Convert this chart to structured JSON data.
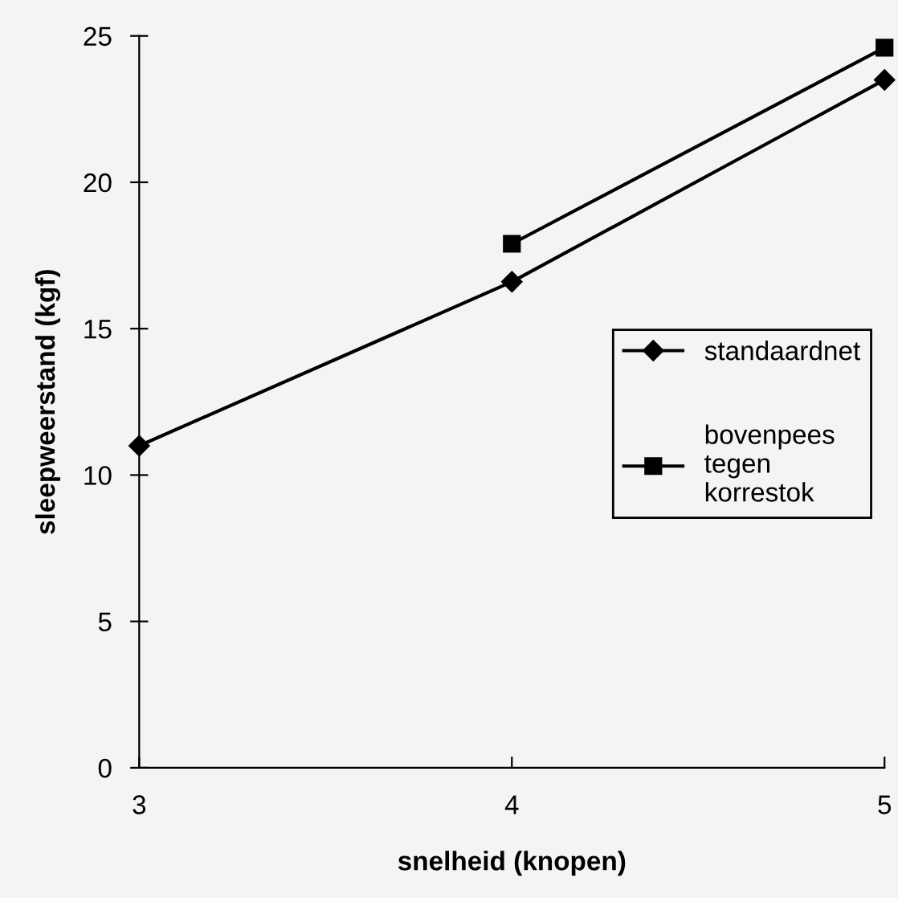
{
  "chart_data": {
    "type": "line",
    "xlabel": "snelheid (knopen)",
    "ylabel": "sleepweerstand (kgf)",
    "x": [
      3,
      4,
      5
    ],
    "xlim": [
      3,
      5
    ],
    "xticks": [
      3,
      4,
      5
    ],
    "ylim": [
      0,
      25
    ],
    "yticks": [
      0,
      5,
      10,
      15,
      20,
      25
    ],
    "grid": false,
    "legend": "right",
    "series": [
      {
        "name": "standaardnet",
        "color": "#000000",
        "marker": "diamond",
        "values": [
          11.0,
          16.6,
          23.5
        ]
      },
      {
        "name": "bovenpees\ntegen\nkorrestok",
        "color": "#000000",
        "marker": "square",
        "values": [
          null,
          17.9,
          24.6
        ]
      }
    ]
  }
}
